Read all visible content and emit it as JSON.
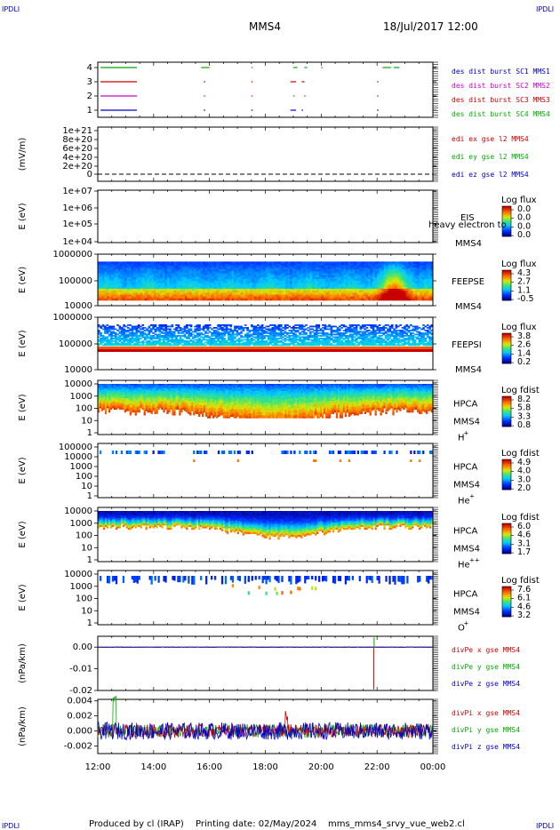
{
  "header": {
    "corner_left_top": "IPDLI",
    "corner_right_top": "IPDLI",
    "corner_left_bottom": "IPDLI",
    "corner_right_bottom": "IPDLI",
    "spacecraft": "MMS4",
    "date": "18/Jul/2017 12:00"
  },
  "footer": {
    "produced_by": "Produced by  cl (IRAP)",
    "printing_date": "Printing date: 02/May/2024",
    "script": "mms_mms4_srvy_vue_web2.cl"
  },
  "time_axis": {
    "ticks": [
      "12:00",
      "14:00",
      "16:00",
      "18:00",
      "20:00",
      "22:00",
      "00:00"
    ],
    "hours": [
      12,
      14,
      16,
      18,
      20,
      22,
      24
    ]
  },
  "colors": {
    "c1": "#0000cc",
    "c2": "#cc00cc",
    "c3": "#cc0000",
    "c4": "#00aa00"
  },
  "chart_data": [
    {
      "id": "burst",
      "type": "scatter",
      "yticks": [
        "1",
        "2",
        "3",
        "4"
      ],
      "legend": [
        {
          "label": "des dist burst SC1 MMS1",
          "color": "#0000cc"
        },
        {
          "label": "des dist burst SC2 MMS2",
          "color": "#cc00cc"
        },
        {
          "label": "des dist burst SC3 MMS3",
          "color": "#cc0000"
        },
        {
          "label": "des dist burst SC4 MMS4",
          "color": "#00aa00"
        }
      ],
      "segments": [
        {
          "sc": 4,
          "start": 12.1,
          "end": 13.4
        },
        {
          "sc": 4,
          "start": 15.7,
          "end": 16.0
        },
        {
          "sc": 4,
          "start": 17.5,
          "end": 17.55
        },
        {
          "sc": 4,
          "start": 19.0,
          "end": 19.15
        },
        {
          "sc": 4,
          "start": 19.4,
          "end": 19.5
        },
        {
          "sc": 4,
          "start": 20.0,
          "end": 20.05
        },
        {
          "sc": 4,
          "start": 22.2,
          "end": 22.5
        },
        {
          "sc": 4,
          "start": 22.6,
          "end": 22.8
        },
        {
          "sc": 3,
          "start": 12.1,
          "end": 13.4
        },
        {
          "sc": 3,
          "start": 15.8,
          "end": 15.85
        },
        {
          "sc": 3,
          "start": 17.5,
          "end": 17.55
        },
        {
          "sc": 3,
          "start": 18.9,
          "end": 19.1
        },
        {
          "sc": 3,
          "start": 19.3,
          "end": 19.4
        },
        {
          "sc": 3,
          "start": 22.0,
          "end": 22.05
        },
        {
          "sc": 2,
          "start": 12.1,
          "end": 13.4
        },
        {
          "sc": 2,
          "start": 15.8,
          "end": 15.85
        },
        {
          "sc": 2,
          "start": 17.5,
          "end": 17.55
        },
        {
          "sc": 2,
          "start": 19.0,
          "end": 19.05
        },
        {
          "sc": 2,
          "start": 19.4,
          "end": 19.45
        },
        {
          "sc": 2,
          "start": 22.0,
          "end": 22.05
        },
        {
          "sc": 1,
          "start": 12.1,
          "end": 13.4
        },
        {
          "sc": 1,
          "start": 15.8,
          "end": 15.85
        },
        {
          "sc": 1,
          "start": 17.5,
          "end": 17.55
        },
        {
          "sc": 1,
          "start": 18.9,
          "end": 19.1
        },
        {
          "sc": 1,
          "start": 19.3,
          "end": 19.35
        },
        {
          "sc": 1,
          "start": 22.0,
          "end": 22.05
        }
      ]
    },
    {
      "id": "edi",
      "type": "line",
      "ylabel": "(mV/m)",
      "yticks": [
        "0",
        "2e+20",
        "4e+20",
        "6e+20",
        "8e+20",
        "1e+21"
      ],
      "legend": [
        {
          "label": "edi ex gse l2 MMS4",
          "color": "#cc0000"
        },
        {
          "label": "edi ey gse l2 MMS4",
          "color": "#00aa00"
        },
        {
          "label": "edi ez gse l2 MMS4",
          "color": "#0000cc"
        }
      ]
    },
    {
      "id": "eis",
      "type": "heatmap",
      "ylabel": "E (eV)",
      "yticks": [
        "1e+04",
        "1e+05",
        "1e+06",
        "1e+07"
      ],
      "instrument": "EIS",
      "species": "heavy electron to",
      "spacecraft": "MMS4",
      "cbar_title": "Log flux",
      "cbar_ticks": [
        "0.0",
        "0.0",
        "0.0",
        "0.0"
      ]
    },
    {
      "id": "feepse",
      "type": "heatmap",
      "ylabel": "E (eV)",
      "yticks": [
        "10000",
        "100000",
        "1000000"
      ],
      "instrument": "FEEPSE",
      "spacecraft": "MMS4",
      "cbar_title": "Log flux",
      "cbar_ticks": [
        "4.3",
        "2.7",
        "1.1",
        "-0.5"
      ]
    },
    {
      "id": "feepsi",
      "type": "heatmap",
      "ylabel": "E (eV)",
      "yticks": [
        "10000",
        "100000",
        "1000000"
      ],
      "instrument": "FEEPSI",
      "spacecraft": "MMS4",
      "cbar_title": "Log flux",
      "cbar_ticks": [
        "3.8",
        "2.6",
        "1.4",
        "0.2"
      ]
    },
    {
      "id": "hpca_h",
      "type": "heatmap",
      "ylabel": "E (eV)",
      "yticks": [
        "1",
        "10",
        "100",
        "1000",
        "10000"
      ],
      "instrument": "HPCA",
      "spacecraft": "MMS4",
      "ion": "H",
      "charge": "+",
      "cbar_title": "Log fdist",
      "cbar_ticks": [
        "8.2",
        "5.8",
        "3.3",
        "0.8"
      ]
    },
    {
      "id": "hpca_he1",
      "type": "heatmap",
      "ylabel": "E (eV)",
      "yticks": [
        "1",
        "10",
        "100",
        "1000",
        "10000",
        "100000"
      ],
      "instrument": "HPCA",
      "spacecraft": "MMS4",
      "ion": "He",
      "charge": "+",
      "cbar_title": "Log fdist",
      "cbar_ticks": [
        "4.9",
        "4.0",
        "3.0",
        "2.0"
      ]
    },
    {
      "id": "hpca_he2",
      "type": "heatmap",
      "ylabel": "E (eV)",
      "yticks": [
        "1",
        "10",
        "100",
        "1000",
        "10000"
      ],
      "instrument": "HPCA",
      "spacecraft": "MMS4",
      "ion": "He",
      "charge": "++",
      "cbar_title": "Log fdist",
      "cbar_ticks": [
        "6.0",
        "4.6",
        "3.1",
        "1.7"
      ]
    },
    {
      "id": "hpca_o",
      "type": "heatmap",
      "ylabel": "E (eV)",
      "yticks": [
        "1",
        "10",
        "100",
        "1000",
        "10000"
      ],
      "instrument": "HPCA",
      "spacecraft": "MMS4",
      "ion": "O",
      "charge": "+",
      "cbar_title": "Log fdist",
      "cbar_ticks": [
        "7.6",
        "6.1",
        "4.6",
        "3.2"
      ]
    },
    {
      "id": "divpe",
      "type": "line",
      "ylabel": "(nPa/km)",
      "yticks": [
        "-0.02",
        "-0.01",
        "0.00"
      ],
      "ylim": [
        -0.02,
        0.005
      ],
      "legend": [
        {
          "label": "divPe x gse MMS4",
          "color": "#cc0000"
        },
        {
          "label": "divPe y gse MMS4",
          "color": "#00aa00"
        },
        {
          "label": "divPe z gse MMS4",
          "color": "#0000cc"
        }
      ],
      "spike": {
        "t": 21.88,
        "x": -0.0195,
        "y": 0.0045
      }
    },
    {
      "id": "divpi",
      "type": "line",
      "ylabel": "(nPa/km)",
      "yticks": [
        "-0.002",
        "0.000",
        "0.002",
        "0.004"
      ],
      "ylim": [
        -0.003,
        0.0042
      ],
      "legend": [
        {
          "label": "divPi x gse MMS4",
          "color": "#cc0000"
        },
        {
          "label": "divPi y gse MMS4",
          "color": "#00aa00"
        },
        {
          "label": "divPi z gse MMS4",
          "color": "#0000cc"
        }
      ]
    }
  ]
}
